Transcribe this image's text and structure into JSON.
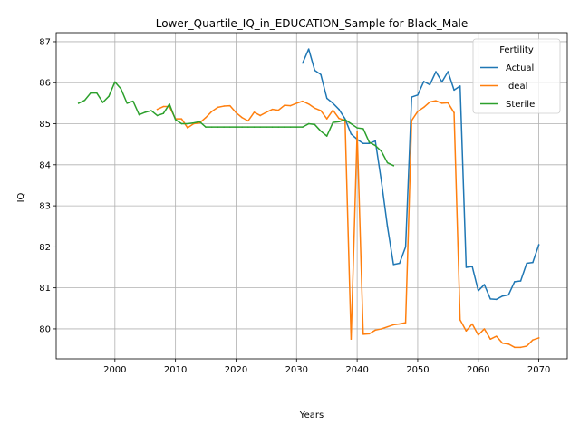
{
  "chart_data": {
    "type": "line",
    "title": "Lower_Quartile_IQ_in_EDUCATION_Sample for Black_Male",
    "xlabel": "Years",
    "ylabel": "IQ",
    "xlim": [
      1990.3,
      2074.7
    ],
    "ylim": [
      79.27,
      87.22
    ],
    "xticks": [
      2000,
      2010,
      2020,
      2030,
      2040,
      2050,
      2060,
      2070
    ],
    "yticks": [
      80,
      81,
      82,
      83,
      84,
      85,
      86,
      87
    ],
    "grid": true,
    "legend": {
      "title": "Fertility",
      "placement": "top-right",
      "entries": [
        "Actual",
        "Ideal",
        "Sterile"
      ]
    },
    "series": [
      {
        "name": "Actual",
        "color": "#1f77b4",
        "points": [
          [
            2031,
            86.48
          ],
          [
            2032,
            86.82
          ],
          [
            2033,
            86.3
          ],
          [
            2034,
            86.2
          ],
          [
            2035,
            85.62
          ],
          [
            2036,
            85.5
          ],
          [
            2037,
            85.35
          ],
          [
            2038,
            85.12
          ],
          [
            2039,
            84.75
          ],
          [
            2040,
            84.62
          ],
          [
            2041,
            84.52
          ],
          [
            2042,
            84.52
          ],
          [
            2043,
            84.58
          ],
          [
            2044,
            83.6
          ],
          [
            2045,
            82.5
          ],
          [
            2046,
            81.57
          ],
          [
            2047,
            81.6
          ],
          [
            2048,
            82.0
          ],
          [
            2049,
            85.65
          ],
          [
            2050,
            85.7
          ],
          [
            2051,
            86.03
          ],
          [
            2052,
            85.95
          ],
          [
            2053,
            86.27
          ],
          [
            2054,
            86.02
          ],
          [
            2055,
            86.27
          ],
          [
            2056,
            85.82
          ],
          [
            2057,
            85.92
          ],
          [
            2058,
            81.5
          ],
          [
            2059,
            81.52
          ],
          [
            2060,
            80.93
          ],
          [
            2061,
            81.08
          ],
          [
            2062,
            80.73
          ],
          [
            2063,
            80.72
          ],
          [
            2064,
            80.8
          ],
          [
            2065,
            80.83
          ],
          [
            2066,
            81.15
          ],
          [
            2067,
            81.17
          ],
          [
            2068,
            81.6
          ],
          [
            2069,
            81.62
          ],
          [
            2070,
            82.05
          ]
        ]
      },
      {
        "name": "Ideal",
        "color": "#ff7f0e",
        "points": [
          [
            2007,
            85.35
          ],
          [
            2008,
            85.42
          ],
          [
            2009,
            85.42
          ],
          [
            2010,
            85.12
          ],
          [
            2011,
            85.12
          ],
          [
            2012,
            84.9
          ],
          [
            2013,
            85.0
          ],
          [
            2014,
            85.02
          ],
          [
            2015,
            85.15
          ],
          [
            2016,
            85.3
          ],
          [
            2017,
            85.4
          ],
          [
            2018,
            85.43
          ],
          [
            2019,
            85.44
          ],
          [
            2020,
            85.27
          ],
          [
            2021,
            85.15
          ],
          [
            2022,
            85.07
          ],
          [
            2023,
            85.28
          ],
          [
            2024,
            85.2
          ],
          [
            2025,
            85.28
          ],
          [
            2026,
            85.35
          ],
          [
            2027,
            85.33
          ],
          [
            2028,
            85.45
          ],
          [
            2029,
            85.44
          ],
          [
            2030,
            85.5
          ],
          [
            2031,
            85.55
          ],
          [
            2032,
            85.48
          ],
          [
            2033,
            85.38
          ],
          [
            2034,
            85.32
          ],
          [
            2035,
            85.12
          ],
          [
            2036,
            85.33
          ],
          [
            2037,
            85.13
          ],
          [
            2038,
            85.08
          ],
          [
            2039,
            79.75
          ],
          [
            2040,
            84.8
          ],
          [
            2041,
            79.87
          ],
          [
            2042,
            79.88
          ],
          [
            2043,
            79.97
          ],
          [
            2044,
            80.0
          ],
          [
            2045,
            80.05
          ],
          [
            2046,
            80.1
          ],
          [
            2047,
            80.12
          ],
          [
            2048,
            80.15
          ],
          [
            2049,
            85.08
          ],
          [
            2050,
            85.3
          ],
          [
            2051,
            85.4
          ],
          [
            2052,
            85.53
          ],
          [
            2053,
            85.56
          ],
          [
            2054,
            85.5
          ],
          [
            2055,
            85.51
          ],
          [
            2056,
            85.27
          ],
          [
            2057,
            80.22
          ],
          [
            2058,
            79.95
          ],
          [
            2059,
            80.12
          ],
          [
            2060,
            79.85
          ],
          [
            2061,
            80.0
          ],
          [
            2062,
            79.75
          ],
          [
            2063,
            79.82
          ],
          [
            2064,
            79.65
          ],
          [
            2065,
            79.63
          ],
          [
            2066,
            79.55
          ],
          [
            2067,
            79.55
          ],
          [
            2068,
            79.58
          ],
          [
            2069,
            79.73
          ],
          [
            2070,
            79.78
          ]
        ]
      },
      {
        "name": "Sterile",
        "color": "#2ca02c",
        "points": [
          [
            1994,
            85.5
          ],
          [
            1995,
            85.57
          ],
          [
            1996,
            85.75
          ],
          [
            1997,
            85.75
          ],
          [
            1998,
            85.52
          ],
          [
            1999,
            85.67
          ],
          [
            2000,
            86.02
          ],
          [
            2001,
            85.85
          ],
          [
            2002,
            85.5
          ],
          [
            2003,
            85.55
          ],
          [
            2004,
            85.22
          ],
          [
            2005,
            85.28
          ],
          [
            2006,
            85.32
          ],
          [
            2007,
            85.2
          ],
          [
            2008,
            85.25
          ],
          [
            2009,
            85.48
          ],
          [
            2010,
            85.1
          ],
          [
            2011,
            85.0
          ],
          [
            2012,
            85.0
          ],
          [
            2013,
            85.02
          ],
          [
            2014,
            85.05
          ],
          [
            2015,
            84.92
          ],
          [
            2016,
            84.92
          ],
          [
            2017,
            84.92
          ],
          [
            2018,
            84.92
          ],
          [
            2019,
            84.92
          ],
          [
            2020,
            84.92
          ],
          [
            2021,
            84.92
          ],
          [
            2022,
            84.92
          ],
          [
            2023,
            84.92
          ],
          [
            2024,
            84.92
          ],
          [
            2025,
            84.92
          ],
          [
            2026,
            84.92
          ],
          [
            2027,
            84.92
          ],
          [
            2028,
            84.92
          ],
          [
            2029,
            84.92
          ],
          [
            2030,
            84.92
          ],
          [
            2031,
            84.92
          ],
          [
            2032,
            85.0
          ],
          [
            2033,
            84.98
          ],
          [
            2034,
            84.82
          ],
          [
            2035,
            84.7
          ],
          [
            2036,
            85.03
          ],
          [
            2037,
            85.05
          ],
          [
            2038,
            85.1
          ],
          [
            2039,
            85.0
          ],
          [
            2040,
            84.9
          ],
          [
            2041,
            84.88
          ],
          [
            2042,
            84.55
          ],
          [
            2043,
            84.47
          ],
          [
            2044,
            84.33
          ],
          [
            2045,
            84.05
          ],
          [
            2046,
            83.98
          ]
        ]
      }
    ]
  }
}
